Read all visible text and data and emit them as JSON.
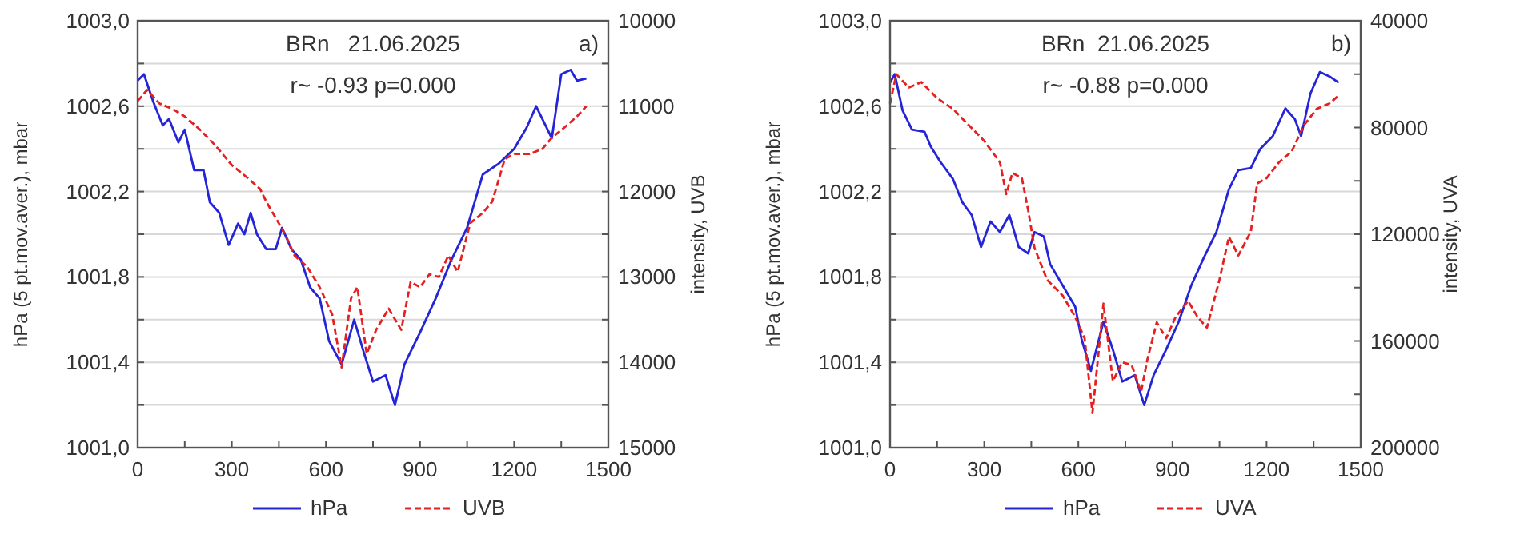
{
  "chart_data": [
    {
      "type": "line",
      "title": "BRn   21.06.2025",
      "annotations": [
        "r~ -0.93 p=0.000",
        "a)"
      ],
      "ylabel": "hPa (5 pt.mov.aver.), mbar",
      "y2label": "intensity, UVB",
      "legend": "bottom",
      "grid": "y",
      "xlim": [
        0,
        1500
      ],
      "xticks": [
        0,
        {
          "value": 150,
          "label": null
        },
        300,
        {
          "value": 450,
          "label": null
        },
        600,
        {
          "value": 750,
          "label": null
        },
        900,
        {
          "value": 1050,
          "label": null
        },
        1200,
        {
          "value": 1350,
          "label": null
        },
        1500
      ],
      "ylim": [
        1001,
        1003
      ],
      "yticks": [
        {
          "value": 1001,
          "label": "1001,0"
        },
        {
          "value": 1001.2,
          "label": null
        },
        {
          "value": 1001.4,
          "label": "1001,4"
        },
        {
          "value": 1001.6,
          "label": null
        },
        {
          "value": 1001.8,
          "label": "1001,8"
        },
        {
          "value": 1002,
          "label": null
        },
        {
          "value": 1002.2,
          "label": "1002,2"
        },
        {
          "value": 1002.4,
          "label": null
        },
        {
          "value": 1002.6,
          "label": "1002,6"
        },
        {
          "value": 1002.8,
          "label": null
        },
        {
          "value": 1003,
          "label": "1003,0"
        }
      ],
      "y2lim": [
        15000,
        10000
      ],
      "y2ticks": [
        10000,
        {
          "value": 10500,
          "label": null
        },
        11000,
        {
          "value": 11500,
          "label": null
        },
        12000,
        {
          "value": 12500,
          "label": null
        },
        13000,
        {
          "value": 13500,
          "label": null
        },
        14000,
        {
          "value": 14500,
          "label": null
        },
        15000
      ],
      "series": [
        {
          "name": "hPa",
          "color": "#2424d8",
          "line_style": "solid",
          "x": [
            0,
            20,
            50,
            80,
            100,
            130,
            150,
            180,
            210,
            230,
            260,
            290,
            320,
            340,
            360,
            380,
            410,
            440,
            460,
            490,
            520,
            550,
            580,
            610,
            650,
            690,
            720,
            750,
            790,
            820,
            850,
            900,
            950,
            1000,
            1050,
            1100,
            1150,
            1200,
            1240,
            1270,
            1300,
            1320,
            1350,
            1380,
            1400,
            1430
          ],
          "values": [
            1002.72,
            1002.75,
            1002.62,
            1002.51,
            1002.54,
            1002.43,
            1002.49,
            1002.3,
            1002.3,
            1002.15,
            1002.1,
            1001.95,
            1002.05,
            1002,
            1002.1,
            1002,
            1001.93,
            1001.93,
            1002.03,
            1001.93,
            1001.88,
            1001.75,
            1001.7,
            1001.5,
            1001.39,
            1001.6,
            1001.45,
            1001.31,
            1001.34,
            1001.2,
            1001.39,
            1001.54,
            1001.7,
            1001.88,
            1002.03,
            1002.28,
            1002.33,
            1002.4,
            1002.5,
            1002.6,
            1002.51,
            1002.45,
            1002.75,
            1002.77,
            1002.72,
            1002.73
          ]
        },
        {
          "name": "UVB",
          "color": "#e42020",
          "line_style": "dashed",
          "axis": "y2",
          "x": [
            0,
            30,
            70,
            110,
            150,
            200,
            250,
            300,
            350,
            390,
            410,
            440,
            470,
            500,
            540,
            580,
            620,
            650,
            680,
            700,
            730,
            760,
            800,
            840,
            870,
            900,
            930,
            960,
            990,
            1020,
            1060,
            1100,
            1130,
            1170,
            1200,
            1250,
            1290,
            1320,
            1360,
            1400,
            1430
          ],
          "values": [
            10940,
            10810,
            10970,
            11030,
            11120,
            11280,
            11470,
            11690,
            11840,
            11970,
            12120,
            12310,
            12500,
            12750,
            12880,
            13120,
            13440,
            14060,
            13250,
            13120,
            13900,
            13620,
            13370,
            13620,
            13060,
            13120,
            12970,
            13000,
            12750,
            12940,
            12370,
            12250,
            12120,
            11620,
            11560,
            11560,
            11500,
            11370,
            11250,
            11120,
            11000
          ]
        }
      ]
    },
    {
      "type": "line",
      "title": "BRn  21.06.2025",
      "annotations": [
        "r~ -0.88 p=0.000",
        "b)"
      ],
      "ylabel": "hPa (5 pt.mov.aver.), mbar",
      "y2label": "intensity, UVA",
      "legend": "bottom",
      "grid": "y",
      "xlim": [
        0,
        1500
      ],
      "xticks": [
        0,
        {
          "value": 150,
          "label": null
        },
        300,
        {
          "value": 450,
          "label": null
        },
        600,
        {
          "value": 750,
          "label": null
        },
        900,
        {
          "value": 1050,
          "label": null
        },
        1200,
        {
          "value": 1350,
          "label": null
        },
        1500
      ],
      "ylim": [
        1001,
        1003
      ],
      "yticks": [
        {
          "value": 1001,
          "label": "1001,0"
        },
        {
          "value": 1001.2,
          "label": null
        },
        {
          "value": 1001.4,
          "label": "1001,4"
        },
        {
          "value": 1001.6,
          "label": null
        },
        {
          "value": 1001.8,
          "label": "1001,8"
        },
        {
          "value": 1002,
          "label": null
        },
        {
          "value": 1002.2,
          "label": "1002,2"
        },
        {
          "value": 1002.4,
          "label": null
        },
        {
          "value": 1002.6,
          "label": "1002,6"
        },
        {
          "value": 1002.8,
          "label": null
        },
        {
          "value": 1003,
          "label": "1003,0"
        }
      ],
      "y2lim": [
        200000,
        40000
      ],
      "y2ticks": [
        40000,
        {
          "value": 60000,
          "label": null
        },
        80000,
        {
          "value": 100000,
          "label": null
        },
        120000,
        {
          "value": 140000,
          "label": null
        },
        160000,
        {
          "value": 180000,
          "label": null
        },
        200000
      ],
      "series": [
        {
          "name": "hPa",
          "color": "#2424d8",
          "line_style": "solid",
          "x": [
            0,
            15,
            40,
            70,
            110,
            130,
            160,
            200,
            230,
            260,
            290,
            320,
            350,
            380,
            410,
            440,
            460,
            490,
            510,
            550,
            590,
            610,
            640,
            680,
            710,
            740,
            780,
            810,
            840,
            880,
            920,
            960,
            1000,
            1040,
            1080,
            1110,
            1150,
            1180,
            1220,
            1260,
            1290,
            1310,
            1340,
            1370,
            1400,
            1430
          ],
          "values": [
            1002.71,
            1002.75,
            1002.58,
            1002.49,
            1002.48,
            1002.41,
            1002.34,
            1002.26,
            1002.15,
            1002.09,
            1001.94,
            1002.06,
            1002.01,
            1002.09,
            1001.94,
            1001.91,
            1002.01,
            1001.99,
            1001.86,
            1001.76,
            1001.66,
            1001.51,
            1001.36,
            1001.59,
            1001.46,
            1001.31,
            1001.34,
            1001.2,
            1001.34,
            1001.46,
            1001.59,
            1001.76,
            1001.89,
            1002.01,
            1002.21,
            1002.3,
            1002.31,
            1002.4,
            1002.46,
            1002.59,
            1002.54,
            1002.46,
            1002.66,
            1002.76,
            1002.74,
            1002.71
          ]
        },
        {
          "name": "UVA",
          "color": "#e42020",
          "line_style": "dashed",
          "axis": "y2",
          "x": [
            0,
            20,
            60,
            100,
            150,
            200,
            250,
            300,
            350,
            370,
            390,
            420,
            440,
            460,
            500,
            550,
            590,
            620,
            645,
            680,
            710,
            740,
            770,
            800,
            820,
            850,
            880,
            910,
            950,
            980,
            1010,
            1050,
            1080,
            1110,
            1150,
            1170,
            1200,
            1240,
            1280,
            1320,
            1360,
            1400,
            1430
          ],
          "values": [
            71000,
            60000,
            65000,
            63000,
            69000,
            73000,
            79000,
            85000,
            93000,
            105000,
            97000,
            99000,
            111000,
            125000,
            137000,
            143000,
            151000,
            159000,
            187000,
            146000,
            175000,
            168000,
            169000,
            179000,
            167000,
            153000,
            159000,
            151000,
            145000,
            151000,
            155000,
            137000,
            121000,
            128000,
            119000,
            101000,
            99000,
            93000,
            89000,
            79000,
            73000,
            71000,
            68000
          ]
        }
      ]
    }
  ]
}
